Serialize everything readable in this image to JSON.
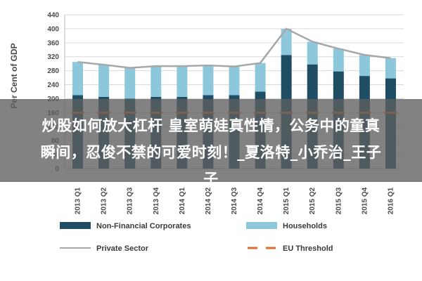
{
  "chart_data": {
    "type": "bar",
    "stacked": true,
    "ylabel": "Per Cent of GDP",
    "ylim": [
      0,
      440
    ],
    "yticks": [
      0,
      40,
      80,
      120,
      160,
      200,
      240,
      280,
      320,
      360,
      400,
      440
    ],
    "categories": [
      "2013 Q1",
      "2013 Q2",
      "2013 Q3",
      "2013 Q4",
      "2014 Q1",
      "2014 Q2",
      "2014 Q3",
      "2014 Q4",
      "2015 Q1",
      "2015 Q2",
      "2015 Q3",
      "2015 Q4",
      "2016 Q1"
    ],
    "series": [
      {
        "name": "Non-Financial Corporates",
        "kind": "bar",
        "color": "#1f4e64",
        "values": [
          210,
          205,
          200,
          205,
          205,
          210,
          210,
          220,
          325,
          298,
          278,
          265,
          258
        ]
      },
      {
        "name": "Households",
        "kind": "bar",
        "color": "#8cc7dc",
        "values": [
          95,
          92,
          88,
          88,
          88,
          85,
          82,
          82,
          75,
          65,
          65,
          60,
          58
        ]
      },
      {
        "name": "Private Sector",
        "kind": "line",
        "color": "#a7a7a7",
        "values": [
          305,
          297,
          288,
          293,
          293,
          295,
          292,
          302,
          400,
          363,
          343,
          325,
          316
        ]
      },
      {
        "name": "EU Threshold",
        "kind": "dashed-line",
        "color": "#e06a2c",
        "values": [
          160,
          160,
          160,
          160,
          160,
          160,
          160,
          160,
          160,
          160,
          160,
          160,
          160
        ]
      }
    ]
  },
  "overlay_caption": {
    "line1": "炒股如何放大杠杆 皇室萌娃真性情，公务中的童真",
    "line2": "瞬间，忍俊不禁的可爱时刻！_夏洛特_小乔治_王子",
    "line3": "子"
  }
}
